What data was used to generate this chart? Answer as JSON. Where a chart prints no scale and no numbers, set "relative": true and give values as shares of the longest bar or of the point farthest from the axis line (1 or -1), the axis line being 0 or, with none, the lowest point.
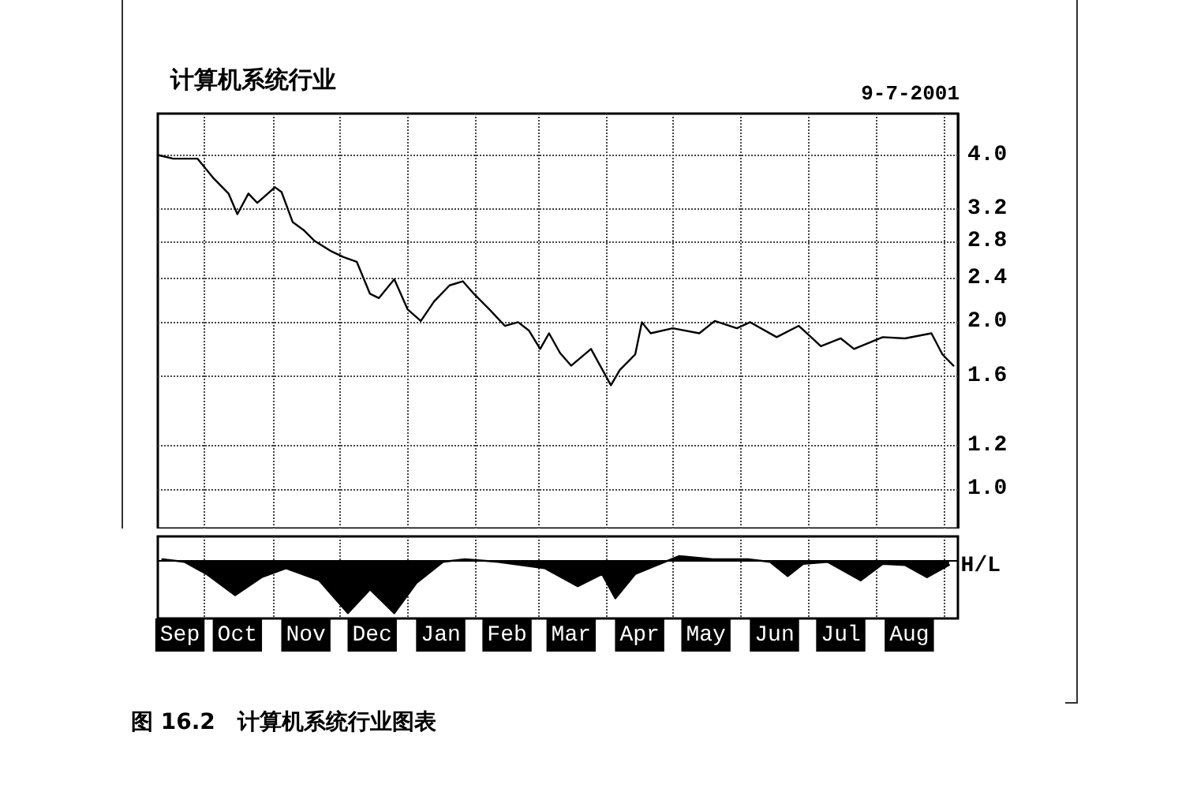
{
  "chart_data": [
    {
      "type": "line",
      "title": "计算机系统行业",
      "annotations": [
        "9-7-2001"
      ],
      "log": true,
      "grid": true,
      "marker": "none",
      "line_style": "solid",
      "tick_labels": "y",
      "xlim": [
        "2000-09-10",
        "2001-09-07"
      ],
      "xticks": [
        {
          "value": "2000-10-01",
          "label": null
        },
        {
          "value": "2000-11-01",
          "label": null
        },
        {
          "value": "2000-12-01",
          "label": null
        },
        {
          "value": "2001-01-01",
          "label": null
        },
        {
          "value": "2001-02-01",
          "label": null
        },
        {
          "value": "2001-03-01",
          "label": null
        },
        {
          "value": "2001-04-01",
          "label": null
        },
        {
          "value": "2001-05-01",
          "label": null
        },
        {
          "value": "2001-06-01",
          "label": null
        },
        {
          "value": "2001-07-01",
          "label": null
        },
        {
          "value": "2001-08-01",
          "label": null
        },
        {
          "value": "2001-09-01",
          "label": null
        }
      ],
      "ylim": [
        0.85,
        4.75
      ],
      "yticks": [
        {
          "value": 1,
          "label": "1.0"
        },
        {
          "value": 1.2,
          "label": "1.2"
        },
        {
          "value": 1.6,
          "label": "1.6"
        },
        {
          "value": 2,
          "label": "2.0"
        },
        {
          "value": 2.4,
          "label": "2.4"
        },
        {
          "value": 2.8,
          "label": "2.8"
        },
        {
          "value": 3.2,
          "label": "3.2"
        },
        {
          "value": 4,
          "label": "4.0"
        }
      ],
      "x": [
        "2000-09-10",
        "2000-09-17",
        "2000-09-28",
        "2000-10-05",
        "2000-10-12",
        "2000-10-16",
        "2000-10-21",
        "2000-10-25",
        "2000-11-02",
        "2000-11-05",
        "2000-11-10",
        "2000-11-15",
        "2000-11-20",
        "2000-11-27",
        "2000-12-03",
        "2000-12-09",
        "2000-12-15",
        "2000-12-19",
        "2000-12-26",
        "2001-01-01",
        "2001-01-07",
        "2001-01-13",
        "2001-01-20",
        "2001-01-26",
        "2001-01-31",
        "2001-02-07",
        "2001-02-14",
        "2001-02-20",
        "2001-02-25",
        "2001-03-02",
        "2001-03-06",
        "2001-03-11",
        "2001-03-16",
        "2001-03-25",
        "2001-04-03",
        "2001-04-07",
        "2001-04-14",
        "2001-04-17",
        "2001-04-21",
        "2001-05-01",
        "2001-05-13",
        "2001-05-20",
        "2001-05-30",
        "2001-06-05",
        "2001-06-17",
        "2001-06-27",
        "2001-07-07",
        "2001-07-16",
        "2001-07-22",
        "2001-08-04",
        "2001-08-14",
        "2001-08-26",
        "2001-08-31",
        "2001-09-05"
      ],
      "series": [
        {
          "color": "#000000",
          "values": [
            4.0,
            3.94,
            3.94,
            3.64,
            3.41,
            3.13,
            3.41,
            3.28,
            3.5,
            3.43,
            3.03,
            2.93,
            2.8,
            2.69,
            2.62,
            2.57,
            2.25,
            2.21,
            2.39,
            2.11,
            2.01,
            2.18,
            2.33,
            2.37,
            2.25,
            2.11,
            1.97,
            2.0,
            1.93,
            1.79,
            1.91,
            1.76,
            1.67,
            1.79,
            1.54,
            1.64,
            1.75,
            2.0,
            1.91,
            1.95,
            1.91,
            2.01,
            1.95,
            2.0,
            1.88,
            1.97,
            1.81,
            1.87,
            1.79,
            1.88,
            1.87,
            1.91,
            1.75,
            1.67
          ]
        }
      ]
    },
    {
      "type": "area",
      "relative": true,
      "ylabel": "H/L",
      "grid": "x",
      "marker": "none",
      "tick_labels": "x",
      "annotations": [
        "图 16.2　计算机系统行业图表"
      ],
      "xlim": [
        "2000-09-10",
        "2001-09-07"
      ],
      "xticks": [
        {
          "value": "2000-09-20",
          "label": "Sep"
        },
        {
          "value": "2000-10-01",
          "label": null
        },
        {
          "value": "2000-10-16",
          "label": "Oct"
        },
        {
          "value": "2000-11-01",
          "label": null
        },
        {
          "value": "2000-11-16",
          "label": "Nov"
        },
        {
          "value": "2000-12-01",
          "label": null
        },
        {
          "value": "2000-12-16",
          "label": "Dec"
        },
        {
          "value": "2001-01-01",
          "label": null
        },
        {
          "value": "2001-01-16",
          "label": "Jan"
        },
        {
          "value": "2001-02-01",
          "label": null
        },
        {
          "value": "2001-02-15",
          "label": "Feb"
        },
        {
          "value": "2001-03-01",
          "label": null
        },
        {
          "value": "2001-03-16",
          "label": "Mar"
        },
        {
          "value": "2001-04-01",
          "label": null
        },
        {
          "value": "2001-04-16",
          "label": "Apr"
        },
        {
          "value": "2001-05-01",
          "label": null
        },
        {
          "value": "2001-05-16",
          "label": "May"
        },
        {
          "value": "2001-06-01",
          "label": null
        },
        {
          "value": "2001-06-16",
          "label": "Jun"
        },
        {
          "value": "2001-07-01",
          "label": null
        },
        {
          "value": "2001-07-16",
          "label": "Jul"
        },
        {
          "value": "2001-08-01",
          "label": null
        },
        {
          "value": "2001-08-16",
          "label": "Aug"
        },
        {
          "value": "2001-09-01",
          "label": null
        }
      ],
      "x": [
        "2000-09-12",
        "2000-09-22",
        "2000-10-02",
        "2000-10-15",
        "2000-10-27",
        "2000-11-07",
        "2000-11-22",
        "2000-12-05",
        "2000-12-15",
        "2000-12-26",
        "2001-01-05",
        "2001-01-17",
        "2001-01-27",
        "2001-02-11",
        "2001-03-04",
        "2001-03-19",
        "2001-03-30",
        "2001-04-05",
        "2001-04-14",
        "2001-04-24",
        "2001-05-04",
        "2001-05-19",
        "2001-06-04",
        "2001-06-14",
        "2001-06-22",
        "2001-06-29",
        "2001-07-10",
        "2001-07-25",
        "2001-08-04",
        "2001-08-14",
        "2001-08-24",
        "2001-09-03"
      ],
      "series": [
        {
          "color": "#000000",
          "values": [
            0.02,
            -0.03,
            -0.26,
            -0.66,
            -0.32,
            -0.15,
            -0.38,
            -1,
            -0.55,
            -1,
            -0.43,
            -0.03,
            0.02,
            -0.03,
            -0.15,
            -0.49,
            -0.26,
            -0.72,
            -0.26,
            -0.09,
            0.08,
            0.02,
            0.02,
            -0.03,
            -0.3,
            -0.07,
            -0.03,
            -0.38,
            -0.07,
            -0.09,
            -0.32,
            -0.09
          ]
        }
      ]
    }
  ]
}
